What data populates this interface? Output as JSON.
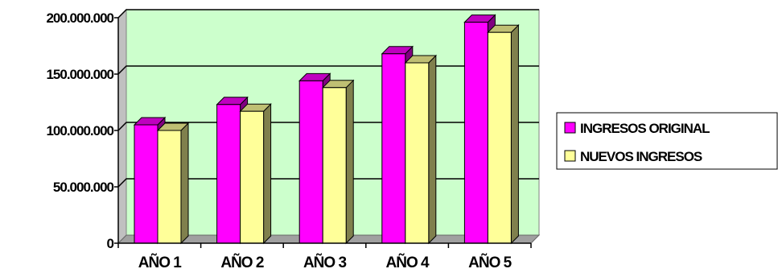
{
  "chart_data": {
    "type": "bar",
    "categories": [
      "AÑO 1",
      "AÑO 2",
      "AÑO 3",
      "AÑO 4",
      "AÑO 5"
    ],
    "series": [
      {
        "name": "INGRESOS ORIGINAL",
        "values": [
          105000000,
          123000000,
          144000000,
          168000000,
          196000000
        ],
        "color": "#ff00ff"
      },
      {
        "name": "NUEVOS INGRESOS",
        "values": [
          100000000,
          117000000,
          138000000,
          160000000,
          187000000
        ],
        "color": "#ffff99"
      }
    ],
    "ylim": [
      0,
      200000000
    ],
    "yticks": [
      0,
      50000000,
      100000000,
      150000000,
      200000000
    ],
    "ytick_labels": [
      "0",
      "50.000.000",
      "100.000.000",
      "150.000.000",
      "200.000.000"
    ],
    "grid": true,
    "legend_position": "right",
    "plot_background": "#ccffcc",
    "wall_color": "#c0c0c0"
  }
}
